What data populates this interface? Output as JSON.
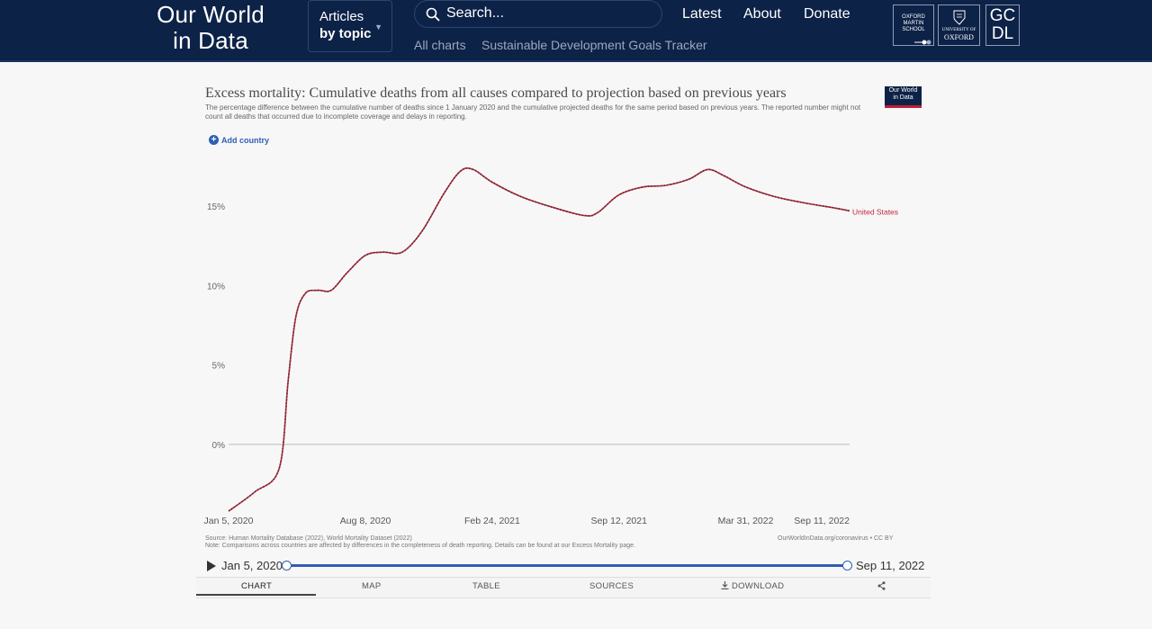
{
  "header": {
    "logo_line1": "Our World",
    "logo_line2": "in Data",
    "articles_line1": "Articles",
    "articles_line2": "by topic",
    "search_placeholder": "Search...",
    "nav": [
      "Latest",
      "About",
      "Donate"
    ],
    "sublinks": [
      "All charts",
      "Sustainable Development Goals Tracker"
    ],
    "partners": {
      "martin_line1": "OXFORD",
      "martin_line2": "MARTIN",
      "martin_line3": "SCHOOL",
      "oxford_line1": "UNIVERSITY OF",
      "oxford_line2": "OXFORD",
      "gcdl_line1": "GC",
      "gcdl_line2": "DL"
    }
  },
  "chart_header": {
    "title": "Excess mortality: Cumulative deaths from all causes compared to projection based on previous years",
    "subtitle": "The percentage difference between the cumulative number of deaths since 1 January 2020 and the cumulative projected deaths for the same period based on previous years. The reported number might not count all deaths that occurred due to incomplete coverage and delays in reporting.",
    "badge_line1": "Our World",
    "badge_line2": "in Data",
    "add_country": "Add country"
  },
  "chart_data": {
    "type": "line",
    "y_tick_labels": [
      "0%",
      "5%",
      "10%",
      "15%"
    ],
    "y_ticks": [
      0,
      5,
      10,
      15
    ],
    "ylim": [
      -4.2,
      18
    ],
    "x_tick_labels": [
      "Jan 5, 2020",
      "Aug 8, 2020",
      "Feb 24, 2021",
      "Sep 12, 2021",
      "Mar 31, 2022",
      "Sep 11, 2022"
    ],
    "x_ticks": [
      "2020-01-05",
      "2020-08-08",
      "2021-02-24",
      "2021-09-12",
      "2022-03-31",
      "2022-09-11"
    ],
    "xlim": [
      "2020-01-05",
      "2022-09-11"
    ],
    "series": [
      {
        "name": "United States",
        "color": "#c0283e",
        "points": [
          [
            "2020-01-05",
            -4.2
          ],
          [
            "2020-02-15",
            -3.0
          ],
          [
            "2020-03-25",
            -1.5
          ],
          [
            "2020-04-08",
            4.0
          ],
          [
            "2020-04-20",
            8.0
          ],
          [
            "2020-05-05",
            9.5
          ],
          [
            "2020-05-25",
            9.7
          ],
          [
            "2020-06-15",
            9.7
          ],
          [
            "2020-07-10",
            10.8
          ],
          [
            "2020-08-08",
            11.9
          ],
          [
            "2020-09-05",
            12.1
          ],
          [
            "2020-10-05",
            12.1
          ],
          [
            "2020-11-05",
            13.4
          ],
          [
            "2020-12-10",
            15.8
          ],
          [
            "2021-01-05",
            17.2
          ],
          [
            "2021-01-25",
            17.3
          ],
          [
            "2021-02-24",
            16.5
          ],
          [
            "2021-04-10",
            15.6
          ],
          [
            "2021-06-01",
            14.9
          ],
          [
            "2021-07-20",
            14.4
          ],
          [
            "2021-08-10",
            14.6
          ],
          [
            "2021-09-12",
            15.7
          ],
          [
            "2021-10-20",
            16.2
          ],
          [
            "2021-11-25",
            16.3
          ],
          [
            "2022-01-01",
            16.7
          ],
          [
            "2022-01-30",
            17.3
          ],
          [
            "2022-02-25",
            16.9
          ],
          [
            "2022-03-31",
            16.2
          ],
          [
            "2022-05-15",
            15.6
          ],
          [
            "2022-07-01",
            15.2
          ],
          [
            "2022-08-15",
            14.9
          ],
          [
            "2022-09-11",
            14.7
          ]
        ]
      }
    ],
    "grid": "zero-line only"
  },
  "footer": {
    "source": "Source: Human Mortality Database (2022), World Mortality Dataset (2022)",
    "note": "Note: Comparisons across countries are affected by differences in the completeness of death reporting. Details can be found at our Excess Mortality page.",
    "credit": "OurWorldInData.org/coronavirus • CC BY"
  },
  "timeline": {
    "start_label": "Jan 5, 2020",
    "end_label": "Sep 11, 2022",
    "start_fraction": 0,
    "end_fraction": 1
  },
  "tabs": [
    "CHART",
    "MAP",
    "TABLE",
    "SOURCES",
    "DOWNLOAD"
  ],
  "active_tab": "CHART"
}
